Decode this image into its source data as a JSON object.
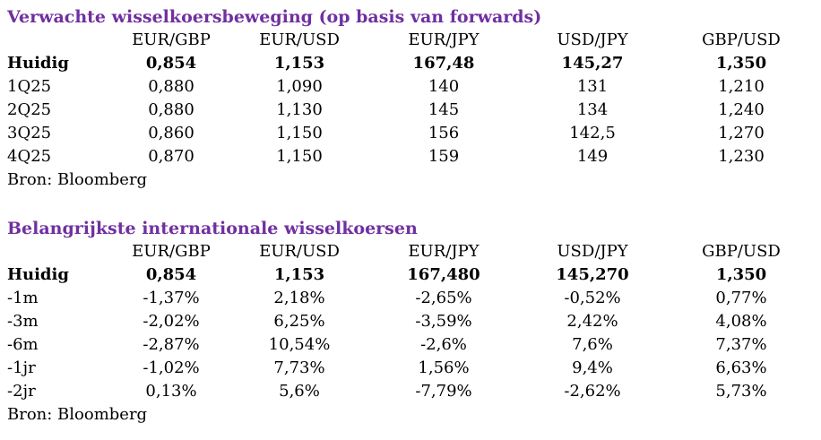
{
  "forwards": {
    "title": "Verwachte wisselkoersbeweging (op basis van forwards)",
    "headers": [
      "",
      "EUR/GBP",
      "EUR/USD",
      "EUR/JPY",
      "USD/JPY",
      "GBP/USD"
    ],
    "rows": [
      {
        "label": "Huidig",
        "values": [
          "0,854",
          "1,153",
          "167,48",
          "145,27",
          "1,350"
        ]
      },
      {
        "label": "1Q25",
        "values": [
          "0,880",
          "1,090",
          "140",
          "131",
          "1,210"
        ]
      },
      {
        "label": "2Q25",
        "values": [
          "0,880",
          "1,130",
          "145",
          "134",
          "1,240"
        ]
      },
      {
        "label": "3Q25",
        "values": [
          "0,860",
          "1,150",
          "156",
          "142,5",
          "1,270"
        ]
      },
      {
        "label": "4Q25",
        "values": [
          "0,870",
          "1,150",
          "159",
          "149",
          "1,230"
        ]
      }
    ],
    "source": "Bron: Bloomberg"
  },
  "international": {
    "title": "Belangrijkste internationale wisselkoersen",
    "headers": [
      "",
      "EUR/GBP",
      "EUR/USD",
      "EUR/JPY",
      "USD/JPY",
      "GBP/USD"
    ],
    "rows": [
      {
        "label": "Huidig",
        "values": [
          "0,854",
          "1,153",
          "167,480",
          "145,270",
          "1,350"
        ]
      },
      {
        "label": "-1m",
        "values": [
          "-1,37%",
          "2,18%",
          "-2,65%",
          "-0,52%",
          "0,77%"
        ]
      },
      {
        "label": "-3m",
        "values": [
          "-2,02%",
          "6,25%",
          "-3,59%",
          "2,42%",
          "4,08%"
        ]
      },
      {
        "label": "-6m",
        "values": [
          "-2,87%",
          "10,54%",
          "-2,6%",
          "7,6%",
          "7,37%"
        ]
      },
      {
        "label": "-1jr",
        "values": [
          "-1,02%",
          "7,73%",
          "1,56%",
          "9,4%",
          "6,63%"
        ]
      },
      {
        "label": "-2jr",
        "values": [
          "0,13%",
          "5,6%",
          "-7,79%",
          "-2,62%",
          "5,73%"
        ]
      }
    ],
    "source": "Bron: Bloomberg"
  }
}
